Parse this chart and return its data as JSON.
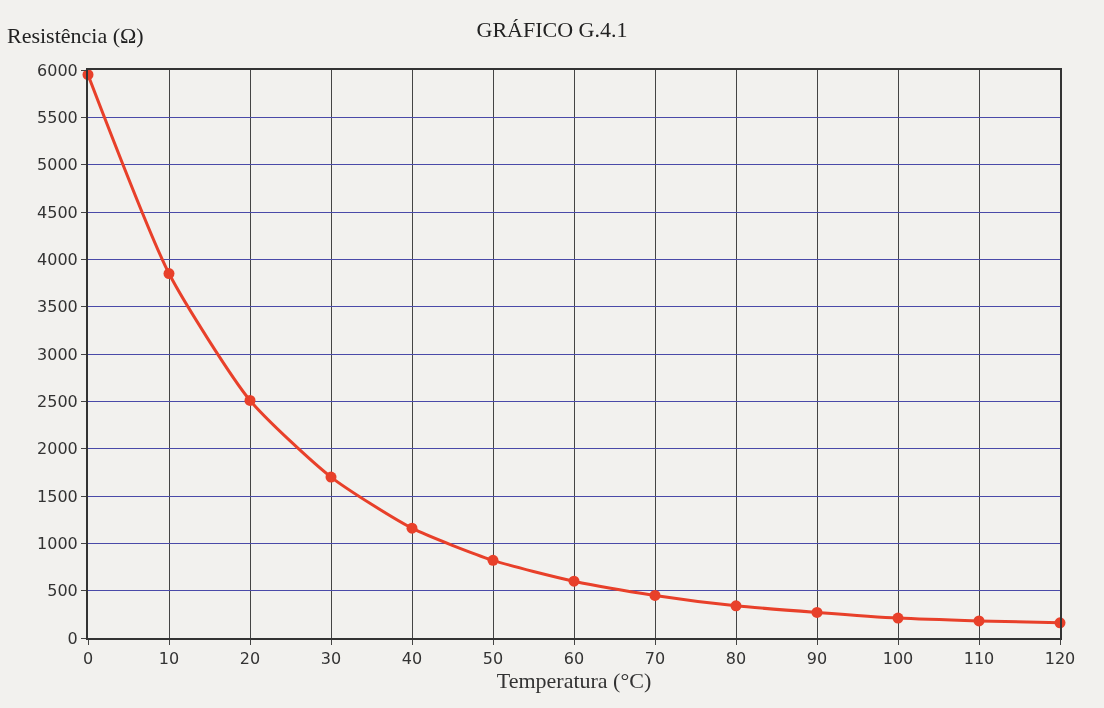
{
  "chart_data": {
    "type": "line",
    "title": "GRÁFICO G.4.1",
    "xlabel": "Temperatura (°C)",
    "ylabel": "Resistência (Ω)",
    "x": [
      0,
      10,
      20,
      30,
      40,
      50,
      60,
      70,
      80,
      90,
      100,
      110,
      120
    ],
    "series": [
      {
        "color": "#e8402a",
        "values": [
          5950,
          3850,
          2510,
          1700,
          1160,
          820,
          600,
          450,
          340,
          270,
          210,
          180,
          160
        ]
      }
    ],
    "xlim": [
      0,
      120
    ],
    "xticks": [
      0,
      10,
      20,
      30,
      40,
      50,
      60,
      70,
      80,
      90,
      100,
      110,
      120
    ],
    "ylim": [
      0,
      6000
    ],
    "yticks": [
      0,
      500,
      1000,
      1500,
      2000,
      2500,
      3000,
      3500,
      4000,
      4500,
      5000,
      5500,
      6000
    ],
    "grid": true,
    "marker": "circle",
    "line_style": "solid"
  }
}
